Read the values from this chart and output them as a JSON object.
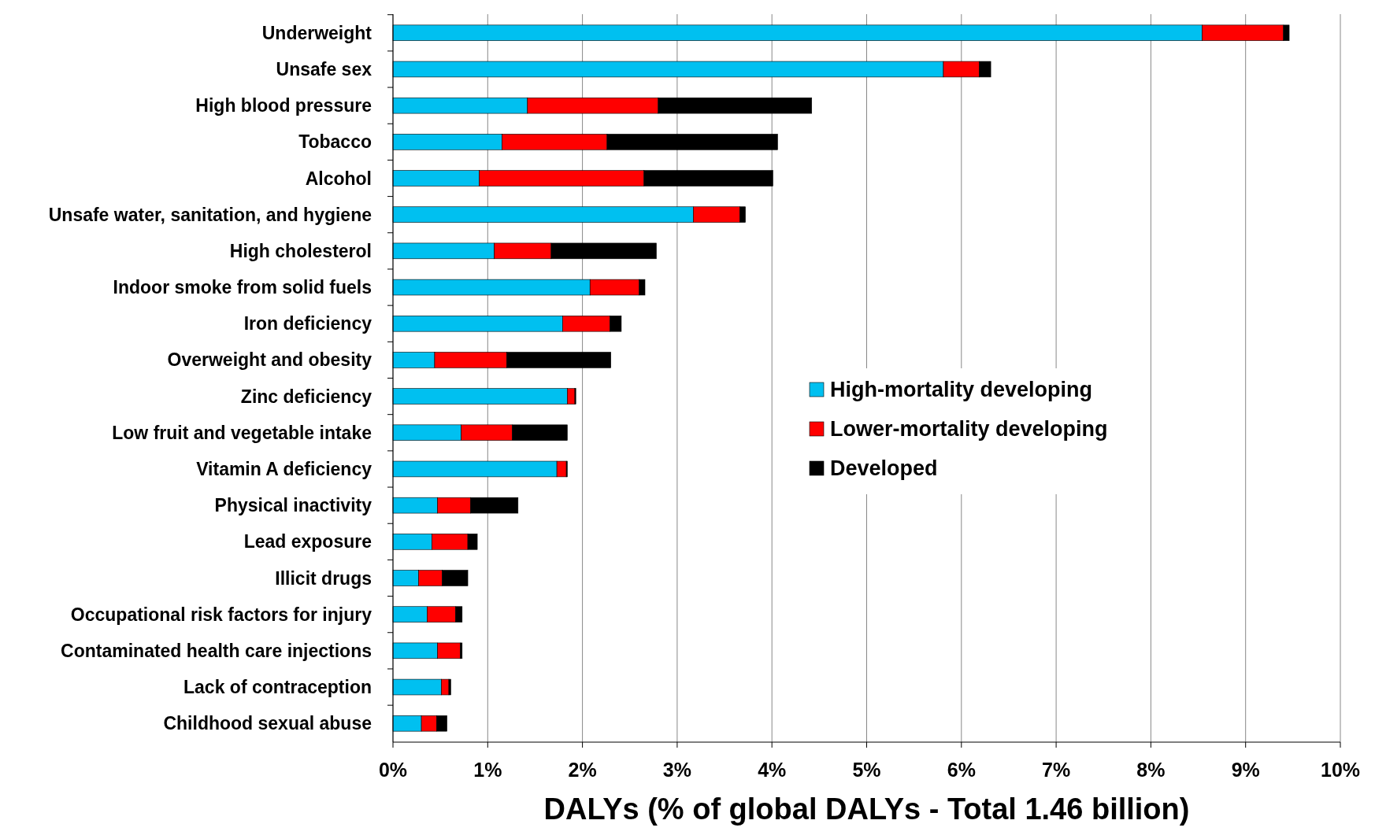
{
  "chart_data": {
    "type": "bar",
    "orientation": "horizontal",
    "stacked": true,
    "xlabel": "DALYs (% of global DALYs - Total 1.46 billion)",
    "categories": [
      "Underweight",
      "Unsafe sex",
      "High blood pressure",
      "Tobacco",
      "Alcohol",
      "Unsafe water, sanitation, and hygiene",
      "High cholesterol",
      "Indoor smoke from solid fuels",
      "Iron deficiency",
      "Overweight and obesity",
      "Zinc deficiency",
      "Low fruit and vegetable intake",
      "Vitamin A deficiency",
      "Physical inactivity",
      "Lead exposure",
      "Illicit drugs",
      "Occupational risk factors for injury",
      "Contaminated health care injections",
      "Lack of contraception",
      "Childhood sexual abuse"
    ],
    "series": [
      {
        "name": "High-mortality developing",
        "color": "#00c0f0",
        "values": [
          8.54,
          5.81,
          1.42,
          1.15,
          0.91,
          3.17,
          1.07,
          2.08,
          1.79,
          0.44,
          1.84,
          0.72,
          1.73,
          0.47,
          0.41,
          0.27,
          0.36,
          0.47,
          0.51,
          0.3
        ]
      },
      {
        "name": "Lower-mortality developing",
        "color": "#ff0000",
        "values": [
          0.86,
          0.38,
          1.38,
          1.11,
          1.74,
          0.49,
          0.6,
          0.52,
          0.5,
          0.76,
          0.08,
          0.54,
          0.1,
          0.35,
          0.38,
          0.25,
          0.3,
          0.24,
          0.08,
          0.16
        ]
      },
      {
        "name": "Developed",
        "color": "#000000",
        "values": [
          0.06,
          0.12,
          1.62,
          1.8,
          1.36,
          0.06,
          1.11,
          0.06,
          0.12,
          1.1,
          0.01,
          0.58,
          0.01,
          0.5,
          0.1,
          0.27,
          0.07,
          0.02,
          0.02,
          0.11
        ]
      }
    ],
    "xlim": [
      0,
      10
    ],
    "xticks": [
      {
        "value": 0,
        "label": "0%"
      },
      {
        "value": 1,
        "label": "1%"
      },
      {
        "value": 2,
        "label": "2%"
      },
      {
        "value": 3,
        "label": "3%"
      },
      {
        "value": 4,
        "label": "4%"
      },
      {
        "value": 5,
        "label": "5%"
      },
      {
        "value": 6,
        "label": "6%"
      },
      {
        "value": 7,
        "label": "7%"
      },
      {
        "value": 8,
        "label": "8%"
      },
      {
        "value": 9,
        "label": "9%"
      },
      {
        "value": 10,
        "label": "10%"
      }
    ],
    "grid": "x",
    "legend": "right"
  }
}
